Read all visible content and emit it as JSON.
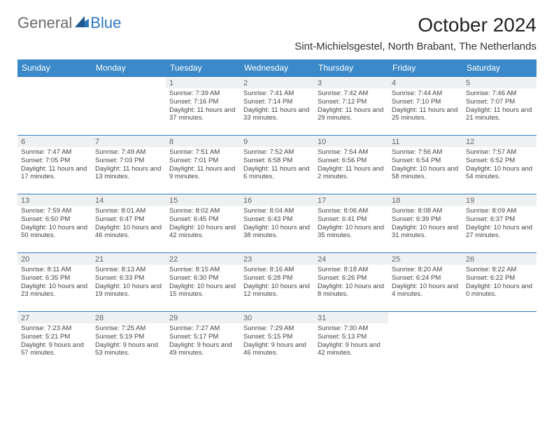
{
  "brand": {
    "part1": "General",
    "part2": "Blue"
  },
  "title": "October 2024",
  "location": "Sint-Michielsgestel, North Brabant, The Netherlands",
  "colors": {
    "header_bg": "#3b89c9",
    "header_text": "#ffffff",
    "rule": "#2f78bd",
    "shade_bg": "#eef0f2",
    "body_text": "#444444",
    "brand_gray": "#6a6a6a",
    "brand_blue": "#2f78bd"
  },
  "day_headers": [
    "Sunday",
    "Monday",
    "Tuesday",
    "Wednesday",
    "Thursday",
    "Friday",
    "Saturday"
  ],
  "weeks": [
    [
      {
        "n": "",
        "lines": []
      },
      {
        "n": "",
        "lines": []
      },
      {
        "n": "1",
        "lines": [
          "Sunrise: 7:39 AM",
          "Sunset: 7:16 PM",
          "Daylight: 11 hours and 37 minutes."
        ]
      },
      {
        "n": "2",
        "lines": [
          "Sunrise: 7:41 AM",
          "Sunset: 7:14 PM",
          "Daylight: 11 hours and 33 minutes."
        ]
      },
      {
        "n": "3",
        "lines": [
          "Sunrise: 7:42 AM",
          "Sunset: 7:12 PM",
          "Daylight: 11 hours and 29 minutes."
        ]
      },
      {
        "n": "4",
        "lines": [
          "Sunrise: 7:44 AM",
          "Sunset: 7:10 PM",
          "Daylight: 11 hours and 25 minutes."
        ]
      },
      {
        "n": "5",
        "lines": [
          "Sunrise: 7:46 AM",
          "Sunset: 7:07 PM",
          "Daylight: 11 hours and 21 minutes."
        ]
      }
    ],
    [
      {
        "n": "6",
        "lines": [
          "Sunrise: 7:47 AM",
          "Sunset: 7:05 PM",
          "Daylight: 11 hours and 17 minutes."
        ]
      },
      {
        "n": "7",
        "lines": [
          "Sunrise: 7:49 AM",
          "Sunset: 7:03 PM",
          "Daylight: 11 hours and 13 minutes."
        ]
      },
      {
        "n": "8",
        "lines": [
          "Sunrise: 7:51 AM",
          "Sunset: 7:01 PM",
          "Daylight: 11 hours and 9 minutes."
        ]
      },
      {
        "n": "9",
        "lines": [
          "Sunrise: 7:52 AM",
          "Sunset: 6:58 PM",
          "Daylight: 11 hours and 6 minutes."
        ]
      },
      {
        "n": "10",
        "lines": [
          "Sunrise: 7:54 AM",
          "Sunset: 6:56 PM",
          "Daylight: 11 hours and 2 minutes."
        ]
      },
      {
        "n": "11",
        "lines": [
          "Sunrise: 7:56 AM",
          "Sunset: 6:54 PM",
          "Daylight: 10 hours and 58 minutes."
        ]
      },
      {
        "n": "12",
        "lines": [
          "Sunrise: 7:57 AM",
          "Sunset: 6:52 PM",
          "Daylight: 10 hours and 54 minutes."
        ]
      }
    ],
    [
      {
        "n": "13",
        "lines": [
          "Sunrise: 7:59 AM",
          "Sunset: 6:50 PM",
          "Daylight: 10 hours and 50 minutes."
        ]
      },
      {
        "n": "14",
        "lines": [
          "Sunrise: 8:01 AM",
          "Sunset: 6:47 PM",
          "Daylight: 10 hours and 46 minutes."
        ]
      },
      {
        "n": "15",
        "lines": [
          "Sunrise: 8:02 AM",
          "Sunset: 6:45 PM",
          "Daylight: 10 hours and 42 minutes."
        ]
      },
      {
        "n": "16",
        "lines": [
          "Sunrise: 8:04 AM",
          "Sunset: 6:43 PM",
          "Daylight: 10 hours and 38 minutes."
        ]
      },
      {
        "n": "17",
        "lines": [
          "Sunrise: 8:06 AM",
          "Sunset: 6:41 PM",
          "Daylight: 10 hours and 35 minutes."
        ]
      },
      {
        "n": "18",
        "lines": [
          "Sunrise: 8:08 AM",
          "Sunset: 6:39 PM",
          "Daylight: 10 hours and 31 minutes."
        ]
      },
      {
        "n": "19",
        "lines": [
          "Sunrise: 8:09 AM",
          "Sunset: 6:37 PM",
          "Daylight: 10 hours and 27 minutes."
        ]
      }
    ],
    [
      {
        "n": "20",
        "lines": [
          "Sunrise: 8:11 AM",
          "Sunset: 6:35 PM",
          "Daylight: 10 hours and 23 minutes."
        ]
      },
      {
        "n": "21",
        "lines": [
          "Sunrise: 8:13 AM",
          "Sunset: 6:33 PM",
          "Daylight: 10 hours and 19 minutes."
        ]
      },
      {
        "n": "22",
        "lines": [
          "Sunrise: 8:15 AM",
          "Sunset: 6:30 PM",
          "Daylight: 10 hours and 15 minutes."
        ]
      },
      {
        "n": "23",
        "lines": [
          "Sunrise: 8:16 AM",
          "Sunset: 6:28 PM",
          "Daylight: 10 hours and 12 minutes."
        ]
      },
      {
        "n": "24",
        "lines": [
          "Sunrise: 8:18 AM",
          "Sunset: 6:26 PM",
          "Daylight: 10 hours and 8 minutes."
        ]
      },
      {
        "n": "25",
        "lines": [
          "Sunrise: 8:20 AM",
          "Sunset: 6:24 PM",
          "Daylight: 10 hours and 4 minutes."
        ]
      },
      {
        "n": "26",
        "lines": [
          "Sunrise: 8:22 AM",
          "Sunset: 6:22 PM",
          "Daylight: 10 hours and 0 minutes."
        ]
      }
    ],
    [
      {
        "n": "27",
        "lines": [
          "Sunrise: 7:23 AM",
          "Sunset: 5:21 PM",
          "Daylight: 9 hours and 57 minutes."
        ]
      },
      {
        "n": "28",
        "lines": [
          "Sunrise: 7:25 AM",
          "Sunset: 5:19 PM",
          "Daylight: 9 hours and 53 minutes."
        ]
      },
      {
        "n": "29",
        "lines": [
          "Sunrise: 7:27 AM",
          "Sunset: 5:17 PM",
          "Daylight: 9 hours and 49 minutes."
        ]
      },
      {
        "n": "30",
        "lines": [
          "Sunrise: 7:29 AM",
          "Sunset: 5:15 PM",
          "Daylight: 9 hours and 46 minutes."
        ]
      },
      {
        "n": "31",
        "lines": [
          "Sunrise: 7:30 AM",
          "Sunset: 5:13 PM",
          "Daylight: 9 hours and 42 minutes."
        ]
      },
      {
        "n": "",
        "lines": []
      },
      {
        "n": "",
        "lines": []
      }
    ]
  ]
}
